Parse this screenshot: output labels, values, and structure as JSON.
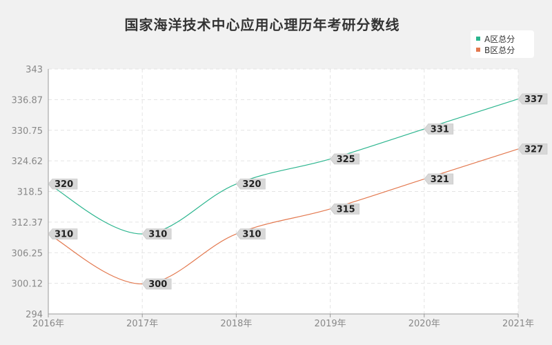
{
  "title": "国家海洋技术中心应用心理历年考研分数线",
  "colors": {
    "series_a": "#2bb58e",
    "series_b": "#e3784e"
  },
  "chart_data": {
    "type": "line",
    "title": "国家海洋技术中心应用心理历年考研分数线",
    "categories": [
      "2016年",
      "2017年",
      "2018年",
      "2019年",
      "2020年",
      "2021年"
    ],
    "series": [
      {
        "name": "A区总分",
        "values": [
          320,
          310,
          320,
          325,
          331,
          337
        ]
      },
      {
        "name": "B区总分",
        "values": [
          310,
          300,
          310,
          315,
          321,
          327
        ]
      }
    ],
    "yticks": [
      "294",
      "300.12",
      "306.25",
      "312.37",
      "318.5",
      "324.62",
      "330.75",
      "336.87",
      "343"
    ],
    "ylim": [
      294,
      343
    ],
    "grid": true,
    "legend": "top-right"
  }
}
